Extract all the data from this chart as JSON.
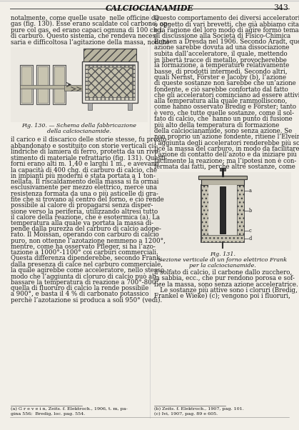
{
  "page_title": "CALCIOCIANAMIDE",
  "page_number": "343",
  "bg_color": "#f2efe8",
  "text_color": "#1a1a1a",
  "header_color": "#111111",
  "left_col_lines_top": [
    "notalmente, come quelle usate  nelle officine da",
    "gas (fig. 130). Esse erano scaldate col carbone, op-",
    "pure col gas, ed erano capaci ognuna di 100 chg.",
    "di carburo. Questo sistema, che rendeva neces-",
    "saria e difficoltosa l’agitazione della massa, nonchè"
  ],
  "fig130_caption_line1": "Fig. 130. — Schema della fabbricazione",
  "fig130_caption_line2": "della calciocianamide.",
  "left_col_lines_bot": [
    "il carico e il discarico delle storie stesse, fu presto",
    "abbandonato e sostituito con storie verticali ci-",
    "lindriche di lamiera di ferro, protetta da un rive-",
    "stimento di materiale refrattario (fig. 131). Questi",
    "forni erano alti m. 1,40 e larghi 1 m., e avevano",
    "la capacità di 400 chg. di carburo di calcio, che",
    "in impianti più moderni è stata portata a 1 ton-",
    "nellata. Il riscaldamento della massa si fa ormai",
    "esclusivamente per mezzo elettrico, mercè una",
    "resistenza formata da una o più asticelle di gra-",
    "fite che si trovano al centro del forno, e ciò rende",
    "possibile al calore di propagarsi senza disper-",
    "sione verso la periferia, utilizzando altresì tutto",
    "il calore della reazione, che è esotermica (a). La",
    "temperatura alla quale va portata la massa di-",
    "pende dalla purezza del carburo di calcio adope-",
    "rato. Il Moissan, operando con carburo di calcio",
    "puro, non ottenne l’azotazione nemmeno a 1200°,",
    "mentre, come ha osservato Pfleger, si ha l’azo-",
    "tazione a 1000°-1100° coi carburi commerciali.",
    "Questa differenza dipenderebbe, secondo Frank,",
    "dalla presenza di calce nel carburo commerciale,",
    "la quale agirebbe come acceleratore, nello stesso",
    "modo che l’aggiunta di cloruro di calcio può ab-",
    "bassare la temperatura di reazione a 700°-800°,",
    "quella di fluoruro di calcio la rende possibile",
    "a 900°, e basta il 4 % di carbonato potassico",
    "perchè l’azotazione si produca a soli 950° (vedi)."
  ],
  "footnote_left_line1": "(a) G r e v e i n, Zeits. f. Elektroch., 1906, t. m, pa-",
  "footnote_left_line2": "gina 556;  Bredig, loc. pag. 554.",
  "right_col_lines_top": [
    "Questo comportamento dei diversi acceleratori",
    "è oggetto di vari brevetti, che già abbiamo citati,",
    "e la ragione del loro modo di agire formò tema",
    "di discussione alla Società di Fisico-Chimica",
    "Bunsen a Dresda nel 1906. Secondo Aradt, questa",
    "azione sarebbe dovuta ad una dissociazione",
    "subita dall’acceleratore, il quale, mettendo",
    "in libertà tracce di metallo, provocherebbe",
    "la formazione, a temperature relativamente",
    "basse, di prodotti intermedi. Secondo altri,",
    "quali Nernst, Förster e Jacoby (b), l’azione",
    "di queste sostanze non sarebbe che un’azione",
    "fondente, e ciò sarebbe confortato dal fatto",
    "che gli acceleratori cominciano ad essere attivi",
    "alla temperatura alla quale rammolliscono,",
    "come hanno osservato Bredig e Förster; tanto",
    "è vero, che tutte quelle sostanze, come il sol-",
    "fato di calcio, che  hanno un punto di fusione",
    "più alto della temperatura di formazione",
    "della calciocianamide, sono senza azione. Se",
    "non proprio un’azione fondente, ritiene l’Elvein,",
    "l’aggiunta degli acceleratori renderebbe più sof-",
    "fice la massa del carburo, in modo da facilitare",
    "l’azione di contatto dell’azoto e da iniziare più",
    "facilmente la reazione; ma l’ipotesi non è con-",
    "fermata dai fatti, perchè altre sostanze, come"
  ],
  "fig131_caption_line1": "Fig. 131.",
  "fig131_caption_line2": "Sezione verticale di un forno elettrico Frank",
  "fig131_caption_line3": "per la calciocianamide.",
  "right_col_lines_bot": [
    "il solfato di calcio, il carbone dallo zucchero,",
    "la sabbia, ecc., che pur rendono porosa e sof-",
    "fice la massa, sono senza azione acceleratrice.",
    "   Le sostanze più attive sono i cloruri (Bredig,",
    "Frankel e Wieke) (c); vengono poi i fluoruri,"
  ],
  "footnote_right_line1": "(b) Zeits. f. Elektroch., 1907, pag. 101.",
  "footnote_right_line2": "(c) Ivi, 1907, pag. 89 e 605."
}
